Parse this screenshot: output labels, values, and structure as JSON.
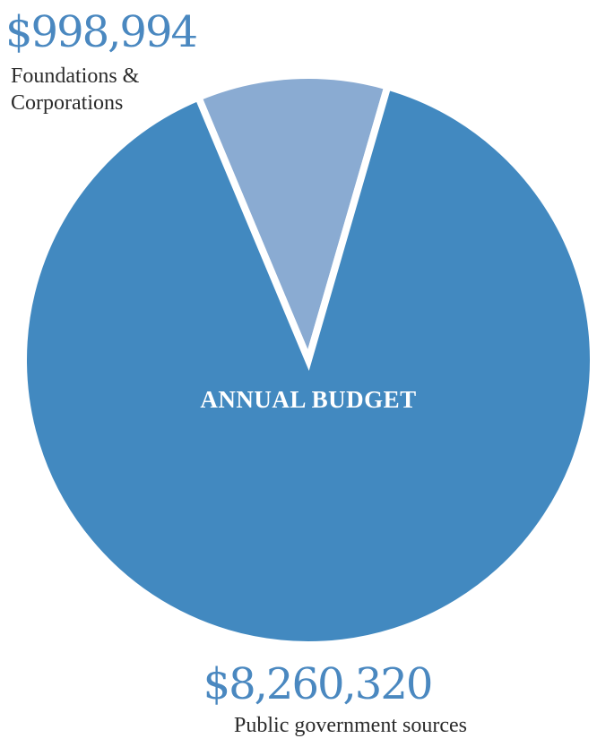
{
  "chart_data": {
    "type": "pie",
    "title": "ANNUAL BUDGET",
    "slices": [
      {
        "label": "Foundations & Corporations",
        "label_lines": [
          "Foundations &",
          "Corporations"
        ],
        "value": 998994,
        "value_label": "$998,994",
        "color": "#8aabd2"
      },
      {
        "label": "Public government sources",
        "label_lines": [
          "Public government sources"
        ],
        "value": 8260320,
        "value_label": "$8,260,320",
        "color": "#4289c0"
      }
    ],
    "legend": "none",
    "grid": false
  },
  "colors": {
    "amount_text": "#4a88c0",
    "label_text": "#2b2b2b",
    "center_text": "#ffffff",
    "separator": "#ffffff"
  }
}
